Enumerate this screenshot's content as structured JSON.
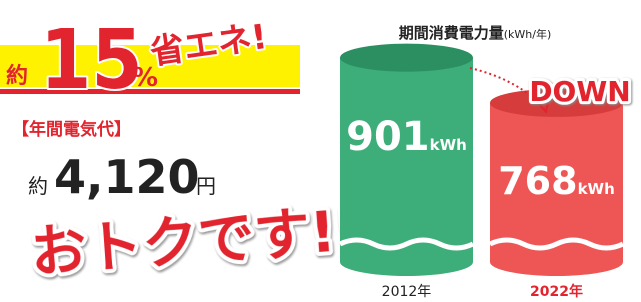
{
  "left": {
    "badge": {
      "prefix": "約",
      "number": "15",
      "unit": "%",
      "text": "省エネ!"
    },
    "cost": {
      "label": "【年間電気代】",
      "prefix": "約",
      "amount": "4,120",
      "unit": "円"
    },
    "slogan": "おトクです!!"
  },
  "right": {
    "title": "期間消費電力量",
    "title_unit": "(kWh/年)",
    "badge": "DOWN",
    "bars": [
      {
        "year": "2012年",
        "value": 901,
        "unit": "kWh",
        "color": "#3dae7a"
      },
      {
        "year": "2022年",
        "value": 768,
        "unit": "kWh",
        "color": "#ee5555"
      }
    ]
  }
}
